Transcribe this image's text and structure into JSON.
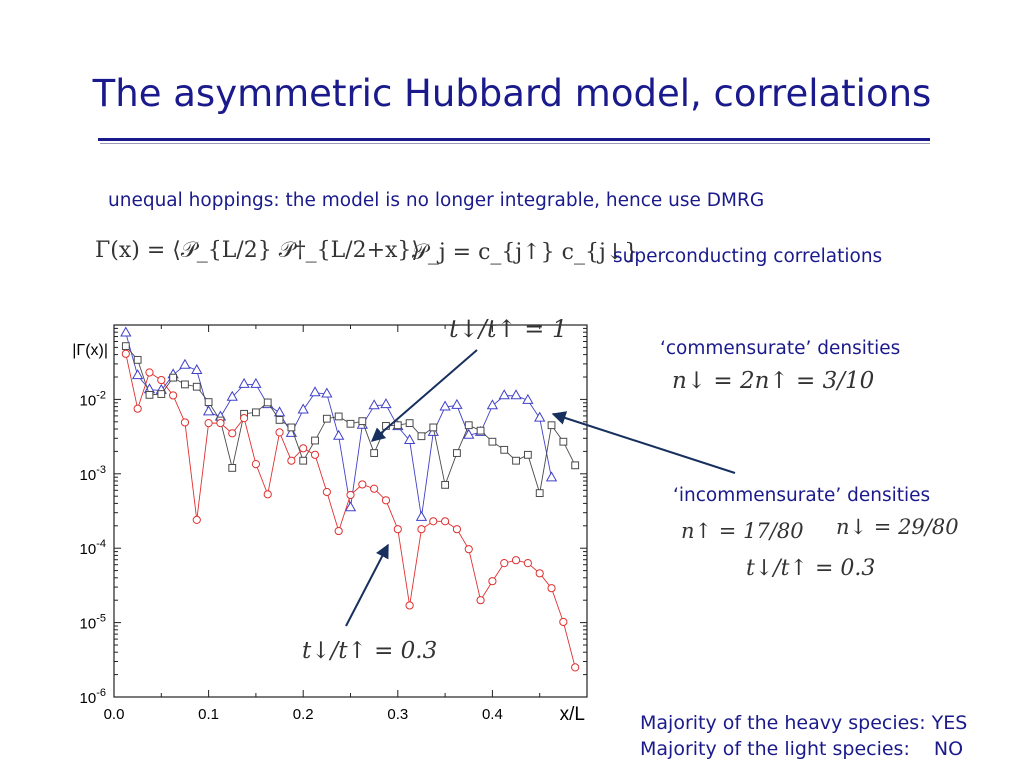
{
  "slide": {
    "title": "The asymmetric Hubbard model, correlations",
    "subtitle": "unequal hoppings: the model is no longer integrable, hence use DMRG",
    "formula_gamma": "Γ(x) = ⟨𝒫_{L/2} 𝒫†_{L/2+x}⟩",
    "formula_pj": "𝒫_j = c_{j↑} c_{j↓}",
    "superconducting_label": "superconducting correlations",
    "commensurate_label": "‘commensurate’ densities",
    "commensurate_eq": "n↓ = 2n↑ = 3/10",
    "incommensurate_label": "‘incommensurate’ densities",
    "incommensurate_eq1": "n↑ = 17/80",
    "incommensurate_eq2": "n↓ = 29/80",
    "incommensurate_eq3": "t↓/t↑ = 0.3",
    "heavy_label": "Majority of the heavy species:",
    "heavy_value": "YES",
    "light_label": "Majority of the light species:",
    "light_value": "NO"
  },
  "chart_data": {
    "type": "scatter",
    "ylabel": "|Γ(x)|",
    "xlabel": "x/L",
    "log_y": true,
    "xlim": [
      0.0,
      0.5
    ],
    "ylim": [
      1e-06,
      0.1
    ],
    "x_ticks": [
      "0.0",
      "0.1",
      "0.2",
      "0.3",
      "0.4"
    ],
    "y_ticks": [
      {
        "base": "10",
        "exp": "-2"
      },
      {
        "base": "10",
        "exp": "-3"
      },
      {
        "base": "10",
        "exp": "-4"
      },
      {
        "base": "10",
        "exp": "-5"
      },
      {
        "base": "10",
        "exp": "-6"
      }
    ],
    "annotations": {
      "top": "t↓/t↑ = 1",
      "bottom": "t↓/t↑ = 0.3"
    },
    "series": [
      {
        "marker": "triangle",
        "color": "#4040c8",
        "points": [
          [
            0.0125,
            0.078
          ],
          [
            0.025,
            0.0209
          ],
          [
            0.0375,
            0.0135
          ],
          [
            0.05,
            0.0132
          ],
          [
            0.0625,
            0.0214
          ],
          [
            0.075,
            0.0288
          ],
          [
            0.0875,
            0.0245
          ],
          [
            0.1,
            0.0068
          ],
          [
            0.1125,
            0.0058
          ],
          [
            0.125,
            0.0107
          ],
          [
            0.1375,
            0.0159
          ],
          [
            0.15,
            0.0159
          ],
          [
            0.1625,
            0.0085
          ],
          [
            0.175,
            0.0066
          ],
          [
            0.1875,
            0.0035
          ],
          [
            0.2,
            0.0072
          ],
          [
            0.2125,
            0.0123
          ],
          [
            0.225,
            0.0118
          ],
          [
            0.2375,
            0.0032
          ],
          [
            0.25,
            0.00035
          ],
          [
            0.2625,
            0.0045
          ],
          [
            0.275,
            0.0082
          ],
          [
            0.2875,
            0.0085
          ],
          [
            0.3,
            0.0043
          ],
          [
            0.3125,
            0.0028
          ],
          [
            0.325,
            0.00026
          ],
          [
            0.3375,
            0.0036
          ],
          [
            0.35,
            0.0079
          ],
          [
            0.3625,
            0.0083
          ],
          [
            0.375,
            0.0033
          ],
          [
            0.3875,
            0.0036
          ],
          [
            0.4,
            0.0082
          ],
          [
            0.4125,
            0.0112
          ],
          [
            0.425,
            0.0112
          ],
          [
            0.4375,
            0.0097
          ],
          [
            0.45,
            0.0056
          ],
          [
            0.4625,
            0.00088
          ]
        ]
      },
      {
        "marker": "square",
        "color": "#4a4a4a",
        "points": [
          [
            0.0125,
            0.052
          ],
          [
            0.025,
            0.034
          ],
          [
            0.0375,
            0.0115
          ],
          [
            0.05,
            0.0118
          ],
          [
            0.0625,
            0.0196
          ],
          [
            0.075,
            0.0159
          ],
          [
            0.0875,
            0.0148
          ],
          [
            0.1,
            0.0092
          ],
          [
            0.1125,
            0.0052
          ],
          [
            0.125,
            0.0012
          ],
          [
            0.1375,
            0.0064
          ],
          [
            0.15,
            0.0067
          ],
          [
            0.1625,
            0.0091
          ],
          [
            0.175,
            0.0053
          ],
          [
            0.1875,
            0.0042
          ],
          [
            0.2,
            0.0015
          ],
          [
            0.2125,
            0.0028
          ],
          [
            0.225,
            0.0055
          ],
          [
            0.2375,
            0.0059
          ],
          [
            0.25,
            0.0047
          ],
          [
            0.2625,
            0.0051
          ],
          [
            0.275,
            0.0019
          ],
          [
            0.2875,
            0.0044
          ],
          [
            0.3,
            0.0045
          ],
          [
            0.3125,
            0.0048
          ],
          [
            0.325,
            0.0032
          ],
          [
            0.3375,
            0.0042
          ],
          [
            0.35,
            0.00071
          ],
          [
            0.3625,
            0.0019
          ],
          [
            0.375,
            0.0045
          ],
          [
            0.3875,
            0.0038
          ],
          [
            0.4,
            0.0027
          ],
          [
            0.4125,
            0.0021
          ],
          [
            0.425,
            0.0015
          ],
          [
            0.4375,
            0.0018
          ],
          [
            0.45,
            0.00055
          ],
          [
            0.4625,
            0.0045
          ],
          [
            0.475,
            0.0027
          ],
          [
            0.4875,
            0.0013
          ]
        ]
      },
      {
        "marker": "circle",
        "color": "#e03030",
        "points": [
          [
            0.0125,
            0.041
          ],
          [
            0.025,
            0.0075
          ],
          [
            0.0375,
            0.023
          ],
          [
            0.05,
            0.0182
          ],
          [
            0.0625,
            0.0113
          ],
          [
            0.075,
            0.0049
          ],
          [
            0.0875,
            0.00024
          ],
          [
            0.1,
            0.0048
          ],
          [
            0.1125,
            0.0048
          ],
          [
            0.125,
            0.0035
          ],
          [
            0.1375,
            0.0056
          ],
          [
            0.15,
            0.00135
          ],
          [
            0.1625,
            0.00053
          ],
          [
            0.175,
            0.0036
          ],
          [
            0.1875,
            0.0015
          ],
          [
            0.2,
            0.0022
          ],
          [
            0.2125,
            0.0018
          ],
          [
            0.225,
            0.00057
          ],
          [
            0.2375,
            0.00017
          ],
          [
            0.25,
            0.00052
          ],
          [
            0.2625,
            0.00072
          ],
          [
            0.275,
            0.00063
          ],
          [
            0.2875,
            0.00044
          ],
          [
            0.3,
            0.00018
          ],
          [
            0.3125,
            1.7e-05
          ],
          [
            0.325,
            0.00018
          ],
          [
            0.3375,
            0.00023
          ],
          [
            0.35,
            0.00023
          ],
          [
            0.3625,
            0.00018
          ],
          [
            0.375,
            9.7e-05
          ],
          [
            0.3875,
            2e-05
          ],
          [
            0.4,
            3.6e-05
          ],
          [
            0.4125,
            6.3e-05
          ],
          [
            0.425,
            6.9e-05
          ],
          [
            0.4375,
            6.3e-05
          ],
          [
            0.45,
            4.6e-05
          ],
          [
            0.4625,
            2.9e-05
          ],
          [
            0.475,
            1.02e-05
          ],
          [
            0.4875,
            2.5e-06
          ]
        ]
      }
    ]
  }
}
